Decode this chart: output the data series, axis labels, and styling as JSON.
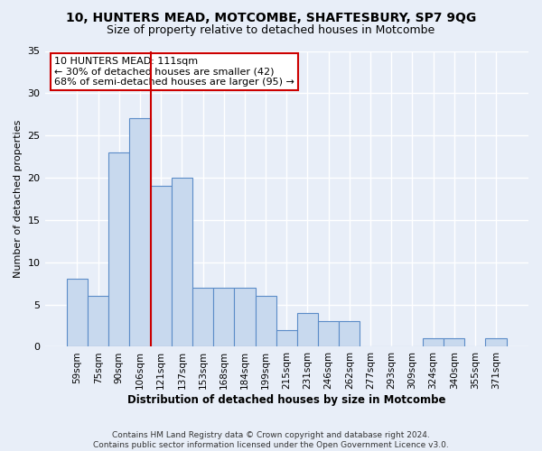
{
  "title": "10, HUNTERS MEAD, MOTCOMBE, SHAFTESBURY, SP7 9QG",
  "subtitle": "Size of property relative to detached houses in Motcombe",
  "xlabel": "Distribution of detached houses by size in Motcombe",
  "ylabel": "Number of detached properties",
  "categories": [
    "59sqm",
    "75sqm",
    "90sqm",
    "106sqm",
    "121sqm",
    "137sqm",
    "153sqm",
    "168sqm",
    "184sqm",
    "199sqm",
    "215sqm",
    "231sqm",
    "246sqm",
    "262sqm",
    "277sqm",
    "293sqm",
    "309sqm",
    "324sqm",
    "340sqm",
    "355sqm",
    "371sqm"
  ],
  "values": [
    8,
    6,
    23,
    27,
    19,
    20,
    7,
    7,
    7,
    6,
    2,
    4,
    3,
    3,
    0,
    0,
    0,
    1,
    1,
    0,
    1
  ],
  "bar_color": "#c8d9ee",
  "bar_edge_color": "#5b8cc8",
  "background_color": "#e8eef8",
  "grid_color": "#ffffff",
  "red_line_x": 3.5,
  "annotation_title": "10 HUNTERS MEAD: 111sqm",
  "annotation_line1": "← 30% of detached houses are smaller (42)",
  "annotation_line2": "68% of semi-detached houses are larger (95) →",
  "annotation_box_color": "#ffffff",
  "annotation_box_edge": "#cc0000",
  "red_line_color": "#cc0000",
  "footer1": "Contains HM Land Registry data © Crown copyright and database right 2024.",
  "footer2": "Contains public sector information licensed under the Open Government Licence v3.0.",
  "fig_bg_color": "#e8eef8",
  "ylim": [
    0,
    35
  ],
  "yticks": [
    0,
    5,
    10,
    15,
    20,
    25,
    30,
    35
  ],
  "title_fontsize": 10,
  "subtitle_fontsize": 9,
  "xlabel_fontsize": 8.5,
  "ylabel_fontsize": 8,
  "tick_fontsize": 8,
  "xtick_fontsize": 7.5,
  "footer_fontsize": 6.5,
  "annot_fontsize": 8
}
